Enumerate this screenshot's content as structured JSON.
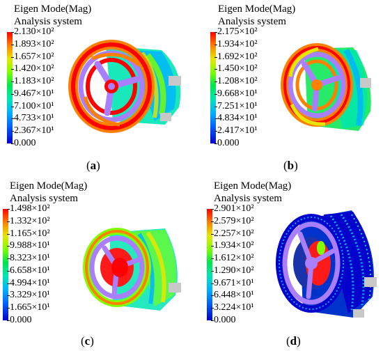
{
  "panels": [
    {
      "title": "Eigen Mode(Mag)",
      "subtitle": "Analysis system",
      "ticks": [
        "2.130×10²",
        "1.893×10²",
        "1.657×10²",
        "1.420×10²",
        "1.183×10²",
        "9.467×10¹",
        "7.100×10¹",
        "4.733×10¹",
        "2.367×10¹",
        "0.000"
      ],
      "caption_open": "(",
      "caption_letter": "a",
      "caption_close": ")"
    },
    {
      "title": "Eigen Mode(Mag)",
      "subtitle": "Analysis system",
      "ticks": [
        "2.175×10²",
        "1.934×10²",
        "1.692×10²",
        "1.450×10²",
        "1.208×10²",
        "9.668×10¹",
        "7.251×10¹",
        "4.834×10¹",
        "2.417×10¹",
        "0.000"
      ],
      "caption_open": "(",
      "caption_letter": "b",
      "caption_close": ")"
    },
    {
      "title": "Eigen Mode(Mag)",
      "subtitle": "Analysis system",
      "ticks": [
        "1.498×10²",
        "1.332×10²",
        "1.165×10²",
        "9.988×10¹",
        "8.323×10¹",
        "6.658×10¹",
        "4.994×10¹",
        "3.329×10¹",
        "1.665×10¹",
        "0.000"
      ],
      "caption_open": "(",
      "caption_letter": "c",
      "caption_close": ")"
    },
    {
      "title": "Eigen Mode(Mag)",
      "subtitle": "Analysis system",
      "ticks": [
        "2.901×10²",
        "2.579×10²",
        "2.257×10²",
        "1.934×10²",
        "1.612×10²",
        "1.290×10²",
        "9.671×10¹",
        "6.448×10¹",
        "3.224×10¹",
        "0.000"
      ],
      "caption_open": "(",
      "caption_letter": "d",
      "caption_close": ")"
    }
  ],
  "colormap": [
    "#ff0000",
    "#ff7f00",
    "#e6e600",
    "#80ff00",
    "#00e64d",
    "#00e6b3",
    "#00b3ff",
    "#0066ff",
    "#0000cc"
  ],
  "colors": {
    "ring": "#a97fff",
    "hub": "#ff1a1a",
    "boss": "#c8c8c8"
  }
}
